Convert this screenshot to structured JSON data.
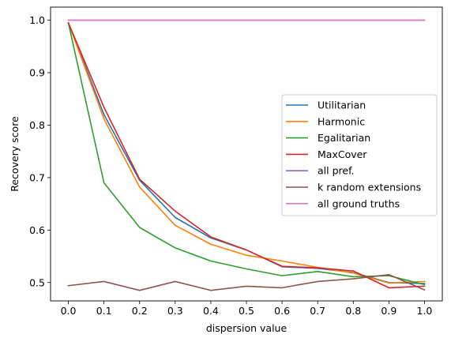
{
  "chart_data": {
    "type": "line",
    "xlabel": "dispersion value",
    "ylabel": "Recovery score",
    "xlim": [
      -0.05,
      1.05
    ],
    "ylim": [
      0.465,
      1.025
    ],
    "x": [
      0.0,
      0.1,
      0.2,
      0.3,
      0.4,
      0.5,
      0.6,
      0.7,
      0.8,
      0.9,
      1.0
    ],
    "xticks": [
      "0.0",
      "0.1",
      "0.2",
      "0.3",
      "0.4",
      "0.5",
      "0.6",
      "0.7",
      "0.8",
      "0.9",
      "1.0"
    ],
    "yticks": [
      "0.5",
      "0.6",
      "0.7",
      "0.8",
      "0.9",
      "1.0"
    ],
    "ytick_values": [
      0.5,
      0.6,
      0.7,
      0.8,
      0.9,
      1.0
    ],
    "legend_position": "center-right",
    "grid": false,
    "series": [
      {
        "name": "Utilitarian",
        "color": "#1f77b4",
        "values": [
          0.995,
          0.82,
          0.695,
          0.624,
          0.585,
          0.562,
          0.53,
          0.527,
          0.519,
          0.5,
          0.498
        ]
      },
      {
        "name": "Harmonic",
        "color": "#ff7f0e",
        "values": [
          0.995,
          0.812,
          0.682,
          0.609,
          0.573,
          0.552,
          0.541,
          0.529,
          0.518,
          0.499,
          0.502
        ]
      },
      {
        "name": "Egalitarian",
        "color": "#2ca02c",
        "values": [
          0.995,
          0.69,
          0.605,
          0.566,
          0.541,
          0.526,
          0.513,
          0.521,
          0.511,
          0.513,
          0.496
        ]
      },
      {
        "name": "MaxCover",
        "color": "#d62728",
        "values": [
          0.995,
          0.834,
          0.697,
          0.636,
          0.587,
          0.562,
          0.531,
          0.528,
          0.522,
          0.49,
          0.493
        ]
      },
      {
        "name": "all pref.",
        "color": "#9467bd",
        "values": [
          1.0,
          1.0,
          1.0,
          1.0,
          1.0,
          1.0,
          1.0,
          1.0,
          1.0,
          1.0,
          1.0
        ]
      },
      {
        "name": "k random extensions",
        "color": "#8c564b",
        "values": [
          0.494,
          0.502,
          0.485,
          0.502,
          0.485,
          0.493,
          0.49,
          0.502,
          0.507,
          0.515,
          0.486
        ]
      },
      {
        "name": "all ground truths",
        "color": "#e377c2",
        "values": [
          1.0,
          1.0,
          1.0,
          1.0,
          1.0,
          1.0,
          1.0,
          1.0,
          1.0,
          1.0,
          1.0
        ]
      }
    ]
  }
}
